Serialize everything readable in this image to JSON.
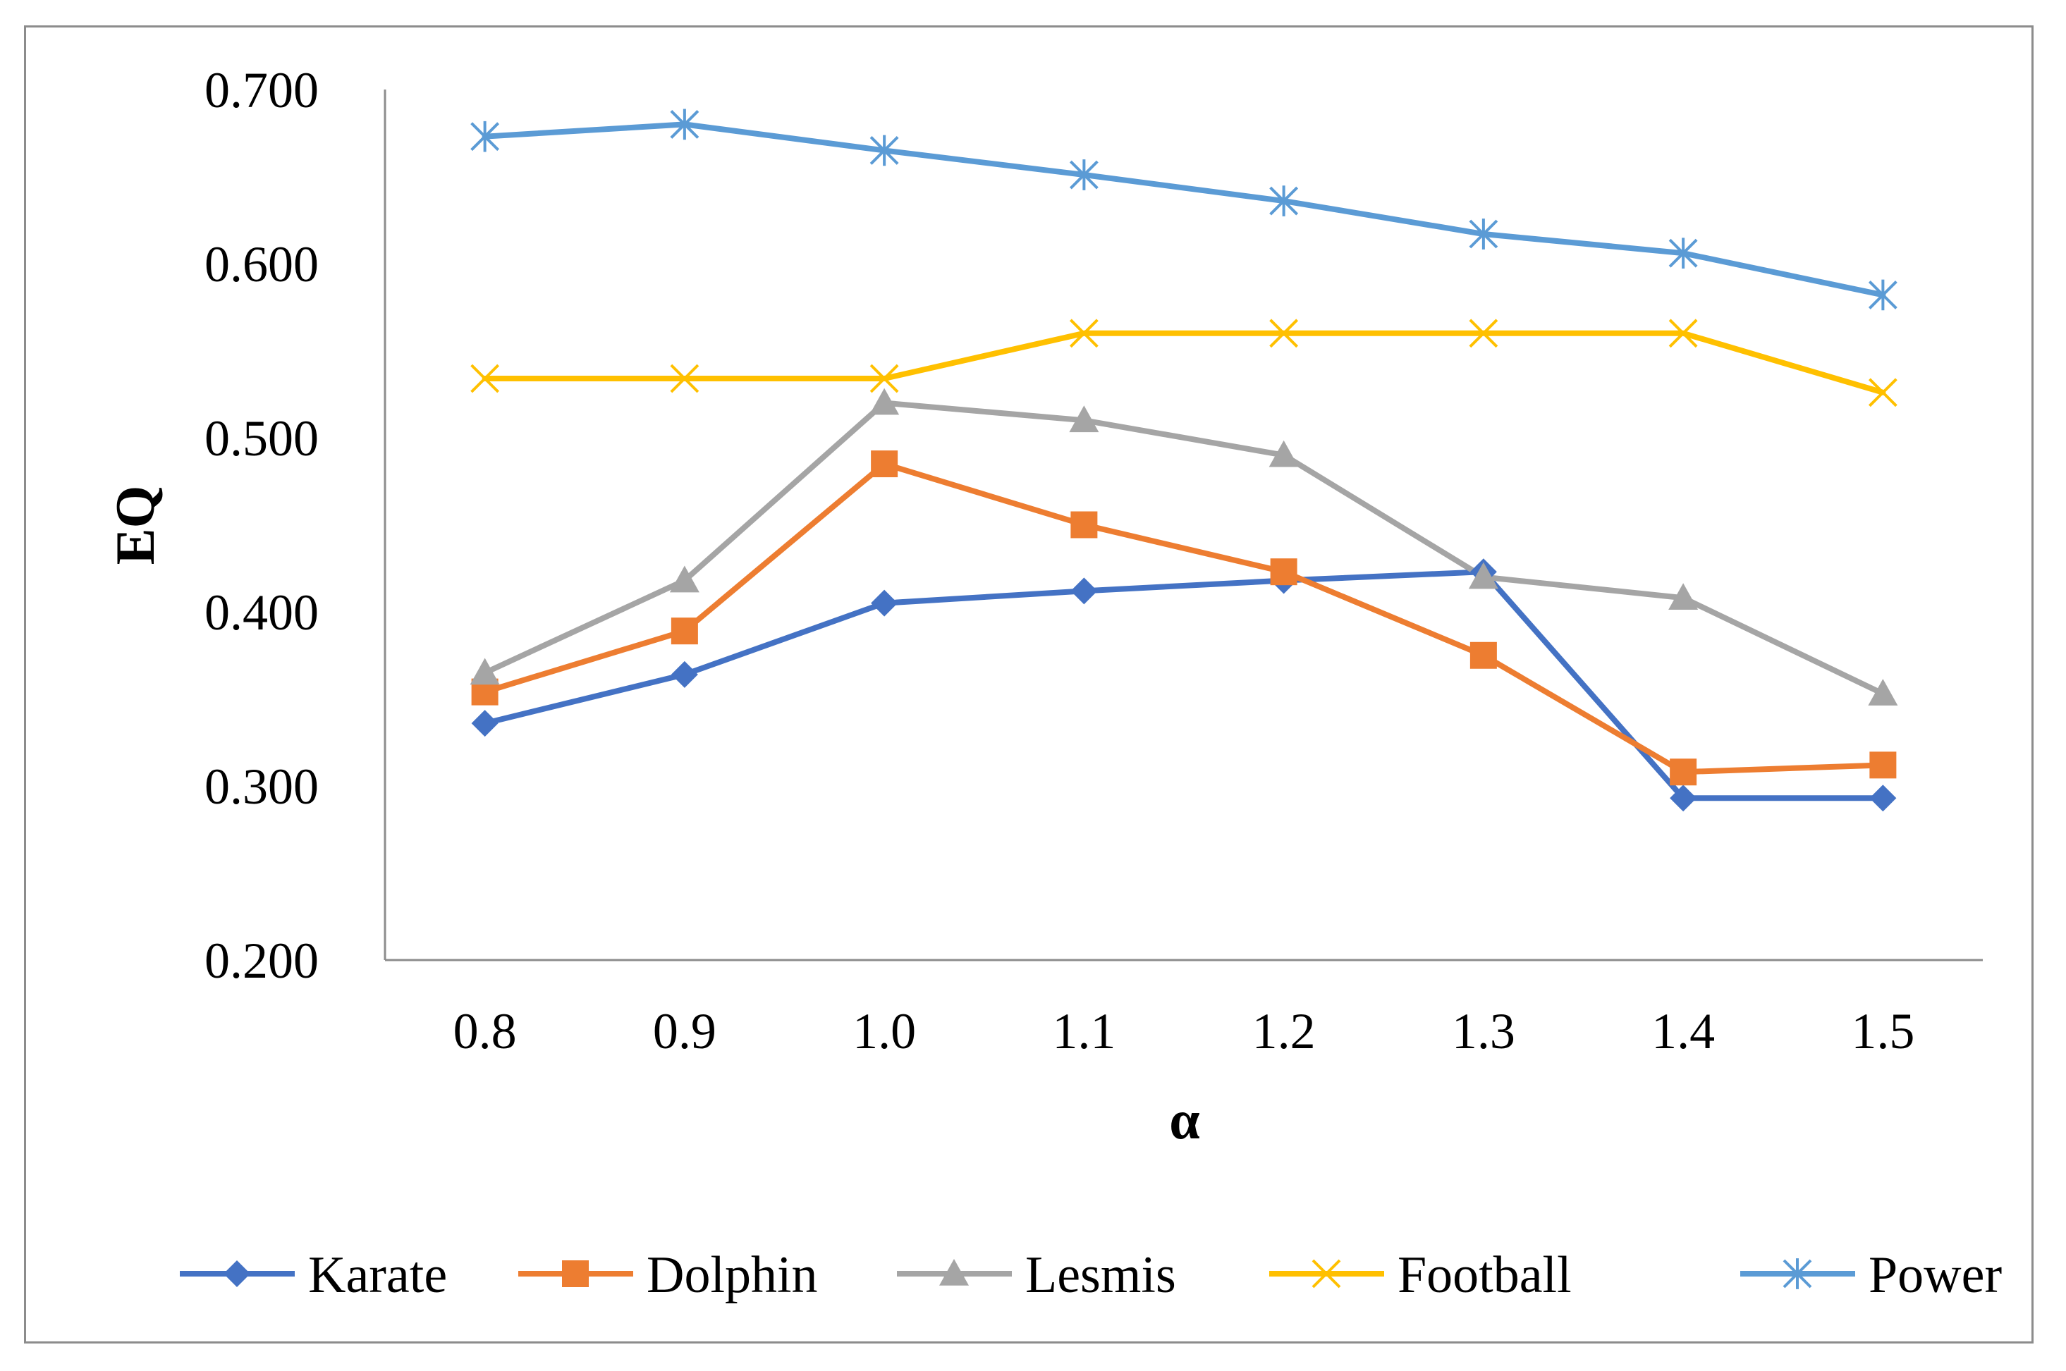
{
  "chart_data": {
    "type": "line",
    "title": "",
    "xlabel": "α",
    "ylabel": "EQ",
    "categories": [
      "0.8",
      "0.9",
      "1.0",
      "1.1",
      "1.2",
      "1.3",
      "1.4",
      "1.5"
    ],
    "ylim": [
      0.2,
      0.7
    ],
    "yticks": [
      "0.200",
      "0.300",
      "0.400",
      "0.500",
      "0.600",
      "0.700"
    ],
    "grid": false,
    "legend_position": "bottom",
    "series": [
      {
        "name": "Karate",
        "color": "#4472C4",
        "marker": "diamond",
        "values": [
          0.336,
          0.364,
          0.405,
          0.412,
          0.418,
          0.423,
          0.293,
          0.293
        ]
      },
      {
        "name": "Dolphin",
        "color": "#ED7D31",
        "marker": "square",
        "values": [
          0.354,
          0.389,
          0.485,
          0.45,
          0.423,
          0.375,
          0.308,
          0.312
        ]
      },
      {
        "name": "Lesmis",
        "color": "#A5A5A5",
        "marker": "triangle",
        "values": [
          0.365,
          0.418,
          0.52,
          0.51,
          0.49,
          0.42,
          0.408,
          0.353
        ]
      },
      {
        "name": "Football",
        "color": "#FFC000",
        "marker": "x",
        "values": [
          0.534,
          0.534,
          0.534,
          0.56,
          0.56,
          0.56,
          0.56,
          0.526
        ]
      },
      {
        "name": "Power",
        "color": "#5B9BD5",
        "marker": "star",
        "values": [
          0.673,
          0.68,
          0.665,
          0.651,
          0.636,
          0.617,
          0.606,
          0.582
        ]
      }
    ]
  }
}
